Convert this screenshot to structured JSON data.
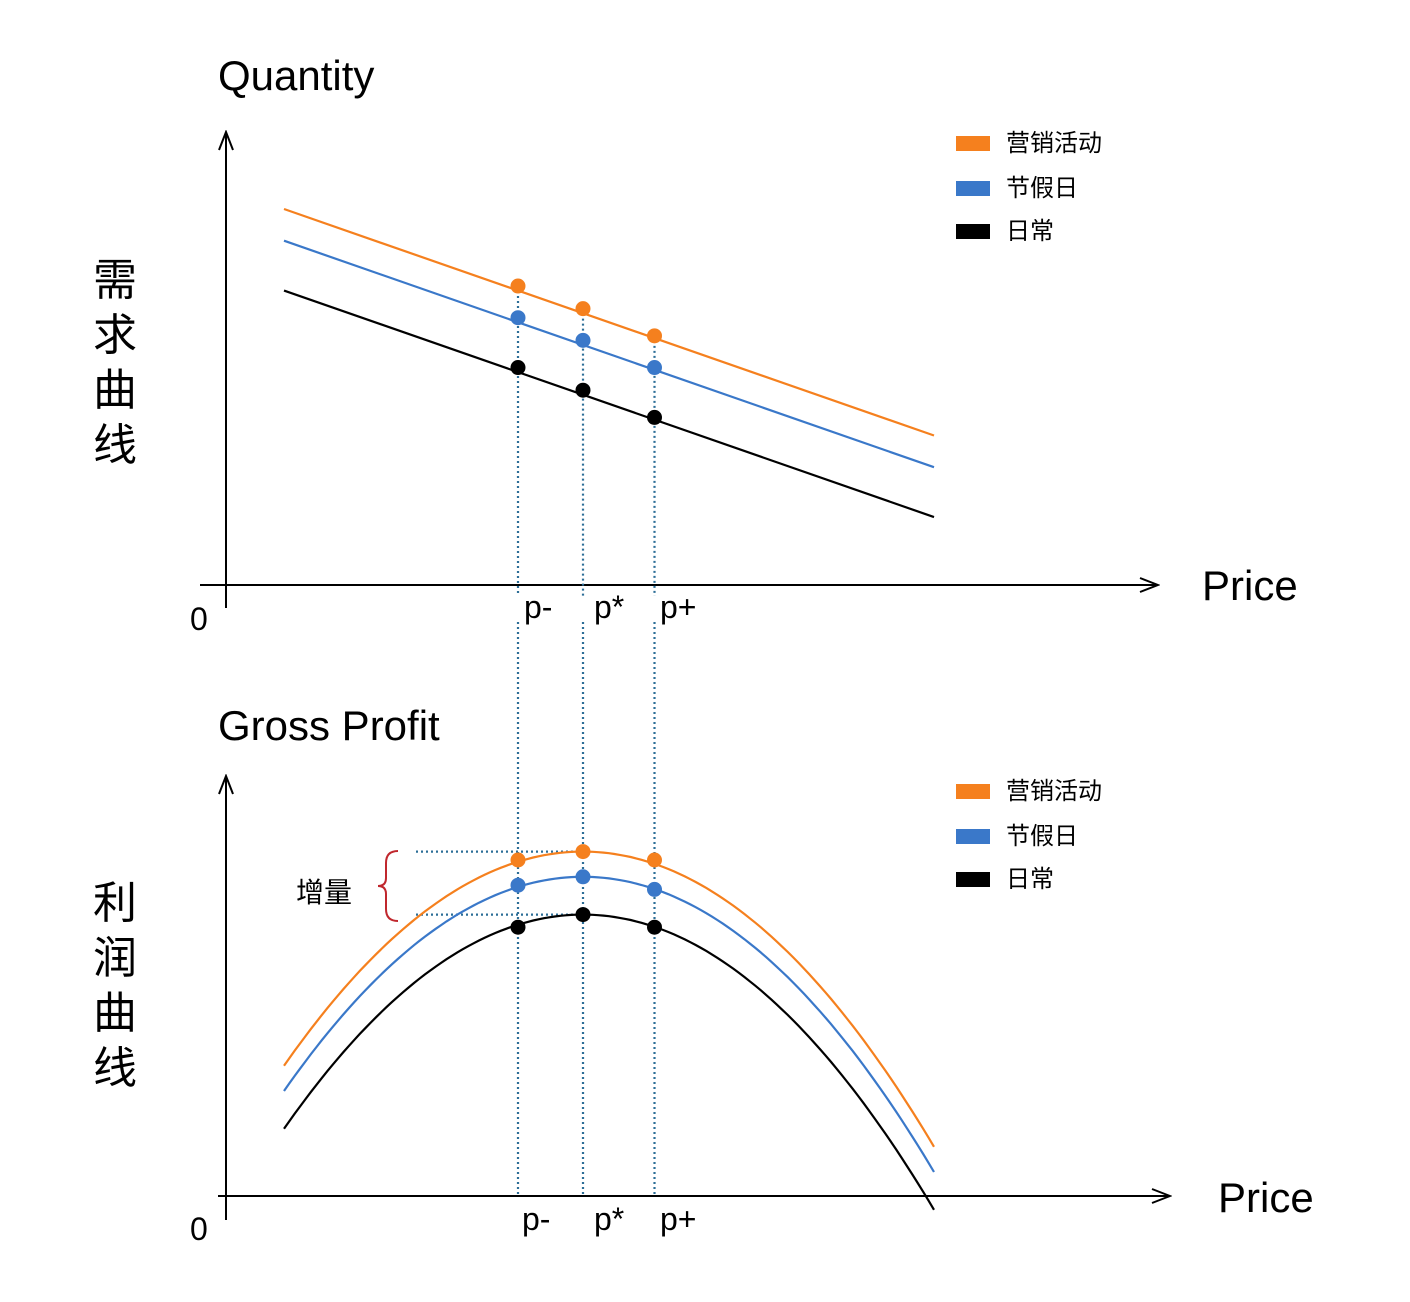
{
  "colors": {
    "promo": "#F5801E",
    "holiday": "#3A78C9",
    "daily": "#000000",
    "guide": "#2C6E97",
    "brace": "#C0272D"
  },
  "chart_data": [
    {
      "type": "line",
      "ylabel": "Quantity",
      "xlabel": "Price",
      "side_label": "需求曲线",
      "origin_label": "0",
      "price_ticks": [
        "p-",
        "p*",
        "p+"
      ],
      "legend_position": "top-right",
      "legend": [
        "营销活动",
        "节假日",
        "日常"
      ],
      "series": [
        {
          "name": "营销活动",
          "color": "#F5801E",
          "line": {
            "x": [
              0.0,
              1.0
            ],
            "y": [
              0.83,
              0.33
            ]
          },
          "markers": {
            "x": [
              0.36,
              0.46,
              0.57
            ],
            "y": [
              0.66,
              0.61,
              0.55
            ]
          }
        },
        {
          "name": "节假日",
          "color": "#3A78C9",
          "line": {
            "x": [
              0.0,
              1.0
            ],
            "y": [
              0.76,
              0.26
            ]
          },
          "markers": {
            "x": [
              0.36,
              0.46,
              0.57
            ],
            "y": [
              0.59,
              0.54,
              0.48
            ]
          }
        },
        {
          "name": "日常",
          "color": "#000000",
          "line": {
            "x": [
              0.0,
              1.0
            ],
            "y": [
              0.65,
              0.15
            ]
          },
          "markers": {
            "x": [
              0.36,
              0.46,
              0.57
            ],
            "y": [
              0.48,
              0.43,
              0.37
            ]
          }
        }
      ]
    },
    {
      "type": "line",
      "ylabel": "Gross Profit",
      "xlabel": "Price",
      "side_label": "利润曲线",
      "origin_label": "0",
      "price_ticks": [
        "p-",
        "p*",
        "p+"
      ],
      "legend_position": "top-right",
      "legend": [
        "营销活动",
        "节假日",
        "日常"
      ],
      "annotation": "增量",
      "series": [
        {
          "name": "营销活动",
          "color": "#F5801E",
          "peak": {
            "x": 0.46,
            "y": 0.82
          },
          "curvature": 2.41,
          "markers": {
            "x": [
              0.36,
              0.46,
              0.57
            ],
            "y": [
              0.8,
              0.82,
              0.8
            ]
          }
        },
        {
          "name": "节假日",
          "color": "#3A78C9",
          "peak": {
            "x": 0.46,
            "y": 0.76
          },
          "curvature": 2.41,
          "markers": {
            "x": [
              0.36,
              0.46,
              0.57
            ],
            "y": [
              0.74,
              0.76,
              0.73
            ]
          }
        },
        {
          "name": "日常",
          "color": "#000000",
          "peak": {
            "x": 0.46,
            "y": 0.67
          },
          "curvature": 2.41,
          "markers": {
            "x": [
              0.36,
              0.46,
              0.57
            ],
            "y": [
              0.64,
              0.67,
              0.64
            ]
          }
        }
      ]
    }
  ]
}
